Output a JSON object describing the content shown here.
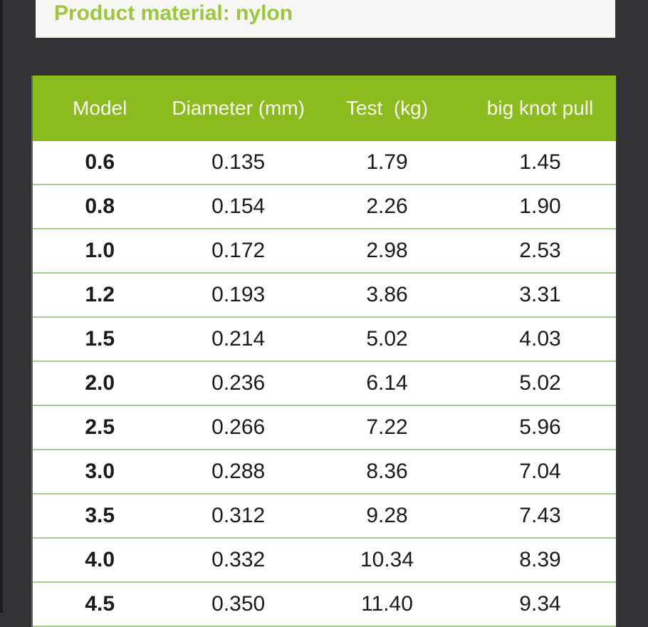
{
  "banner": {
    "title": "Product material: nylon"
  },
  "table": {
    "headers": [
      "Model",
      "Diameter (mm)",
      "Test  (kg)",
      "big knot pull"
    ],
    "rows": [
      [
        "0.6",
        "0.135",
        "1.79",
        "1.45"
      ],
      [
        "0.8",
        "0.154",
        "2.26",
        "1.90"
      ],
      [
        "1.0",
        "0.172",
        "2.98",
        "2.53"
      ],
      [
        "1.2",
        "0.193",
        "3.86",
        "3.31"
      ],
      [
        "1.5",
        "0.214",
        "5.02",
        "4.03"
      ],
      [
        "2.0",
        "0.236",
        "6.14",
        "5.02"
      ],
      [
        "2.5",
        "0.266",
        "7.22",
        "5.96"
      ],
      [
        "3.0",
        "0.288",
        "8.36",
        "7.04"
      ],
      [
        "3.5",
        "0.312",
        "9.28",
        "7.43"
      ],
      [
        "4.0",
        "0.332",
        "10.34",
        "8.39"
      ],
      [
        "4.5",
        "0.350",
        "11.40",
        "9.34"
      ]
    ]
  },
  "colors": {
    "header_green": "#8bbb1e",
    "title_green": "#9cc63e",
    "row_divider_green": "#a6cc8e",
    "page_background": "#333337",
    "banner_background": "#f6f6f4"
  }
}
